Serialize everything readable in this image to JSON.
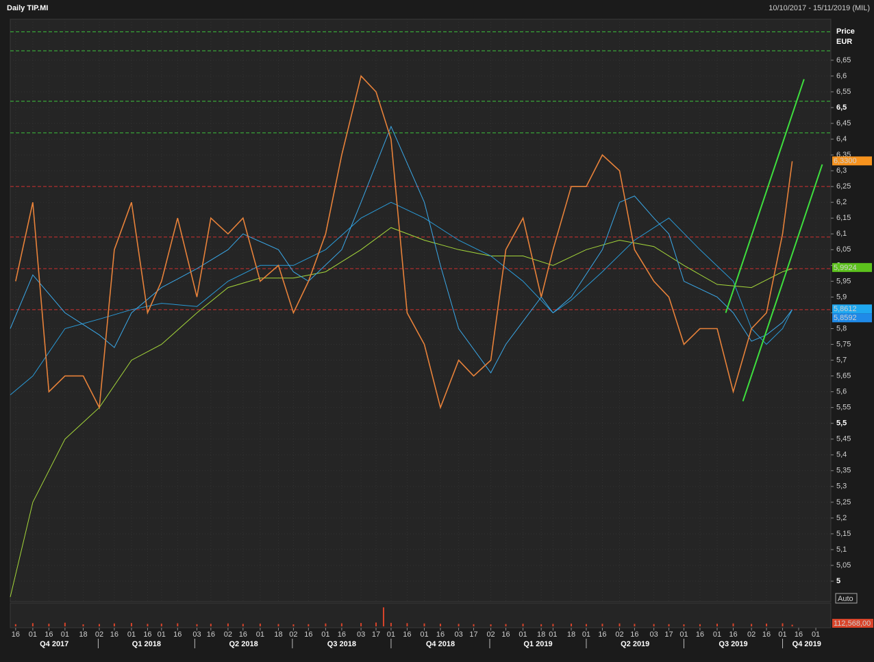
{
  "chart_data": {
    "type": "line",
    "title": "Daily TIP.MI",
    "subtitle": "10/10/2017 - 15/11/2019 (MIL)",
    "y_axis_label": "Price",
    "y_axis_unit": "EUR",
    "scale_button": "Auto",
    "grid": true,
    "xlim": [
      "2017-10-11",
      "2019-11-15"
    ],
    "ylim": [
      4.935,
      6.78
    ],
    "yticks": [
      5,
      {
        "value": 5.05,
        "label": "5,05"
      },
      {
        "value": 5.1,
        "label": "5,1"
      },
      {
        "value": 5.15,
        "label": "5,15"
      },
      {
        "value": 5.2,
        "label": "5,2"
      },
      {
        "value": 5.25,
        "label": "5,25"
      },
      {
        "value": 5.3,
        "label": "5,3"
      },
      {
        "value": 5.35,
        "label": "5,35"
      },
      {
        "value": 5.4,
        "label": "5,4"
      },
      {
        "value": 5.45,
        "label": "5,45"
      },
      {
        "value": 5.5,
        "label": "5,5"
      },
      {
        "value": 5.55,
        "label": "5,55"
      },
      {
        "value": 5.6,
        "label": "5,6"
      },
      {
        "value": 5.65,
        "label": "5,65"
      },
      {
        "value": 5.7,
        "label": "5,7"
      },
      {
        "value": 5.75,
        "label": "5,75"
      },
      {
        "value": 5.8,
        "label": "5,8"
      },
      {
        "value": 5.85,
        "label": "5,85"
      },
      {
        "value": 5.9,
        "label": "5,9"
      },
      {
        "value": 5.95,
        "label": "5,95"
      },
      6,
      {
        "value": 6.05,
        "label": "6,05"
      },
      {
        "value": 6.1,
        "label": "6,1"
      },
      {
        "value": 6.15,
        "label": "6,15"
      },
      {
        "value": 6.2,
        "label": "6,2"
      },
      {
        "value": 6.25,
        "label": "6,25"
      },
      {
        "value": 6.3,
        "label": "6,3"
      },
      {
        "value": 6.35,
        "label": "6,35"
      },
      {
        "value": 6.4,
        "label": "6,4"
      },
      {
        "value": 6.45,
        "label": "6,45"
      },
      {
        "value": 6.5,
        "label": "6,5"
      },
      {
        "value": 6.55,
        "label": "6,55"
      },
      {
        "value": 6.6,
        "label": "6,6"
      },
      {
        "value": 6.65,
        "label": "6,65"
      }
    ],
    "xticks": [
      {
        "value": "2017-10-16",
        "label": "16"
      },
      {
        "value": "2017-11-01",
        "label": "01"
      },
      {
        "value": "2017-11-16",
        "label": "16"
      },
      {
        "value": "2017-12-01",
        "label": "01"
      },
      {
        "value": "2017-12-18",
        "label": "18"
      },
      {
        "value": "2018-01-02",
        "label": "02"
      },
      {
        "value": "2018-01-16",
        "label": "16"
      },
      {
        "value": "2018-02-01",
        "label": "01"
      },
      {
        "value": "2018-02-16",
        "label": "16"
      },
      {
        "value": "2018-03-01",
        "label": "01"
      },
      {
        "value": "2018-03-16",
        "label": "16"
      },
      {
        "value": "2018-04-03",
        "label": "03"
      },
      {
        "value": "2018-04-16",
        "label": "16"
      },
      {
        "value": "2018-05-02",
        "label": "02"
      },
      {
        "value": "2018-05-16",
        "label": "16"
      },
      {
        "value": "2018-06-01",
        "label": "01"
      },
      {
        "value": "2018-06-18",
        "label": "18"
      },
      {
        "value": "2018-07-02",
        "label": "02"
      },
      {
        "value": "2018-07-16",
        "label": "16"
      },
      {
        "value": "2018-08-01",
        "label": "01"
      },
      {
        "value": "2018-08-16",
        "label": "16"
      },
      {
        "value": "2018-09-03",
        "label": "03"
      },
      {
        "value": "2018-09-17",
        "label": "17"
      },
      {
        "value": "2018-10-01",
        "label": "01"
      },
      {
        "value": "2018-10-16",
        "label": "16"
      },
      {
        "value": "2018-11-01",
        "label": "01"
      },
      {
        "value": "2018-11-16",
        "label": "16"
      },
      {
        "value": "2018-12-03",
        "label": "03"
      },
      {
        "value": "2018-12-17",
        "label": "17"
      },
      {
        "value": "2019-01-02",
        "label": "02"
      },
      {
        "value": "2019-01-16",
        "label": "16"
      },
      {
        "value": "2019-02-01",
        "label": "01"
      },
      {
        "value": "2019-02-18",
        "label": "18"
      },
      {
        "value": "2019-03-01",
        "label": "01"
      },
      {
        "value": "2019-03-18",
        "label": "18"
      },
      {
        "value": "2019-04-01",
        "label": "01"
      },
      {
        "value": "2019-04-16",
        "label": "16"
      },
      {
        "value": "2019-05-02",
        "label": "02"
      },
      {
        "value": "2019-05-16",
        "label": "16"
      },
      {
        "value": "2019-06-03",
        "label": "03"
      },
      {
        "value": "2019-06-17",
        "label": "17"
      },
      {
        "value": "2019-07-01",
        "label": "01"
      },
      {
        "value": "2019-07-16",
        "label": "16"
      },
      {
        "value": "2019-08-01",
        "label": "01"
      },
      {
        "value": "2019-08-16",
        "label": "16"
      },
      {
        "value": "2019-09-02",
        "label": "02"
      },
      {
        "value": "2019-09-16",
        "label": "16"
      },
      {
        "value": "2019-10-01",
        "label": "01"
      },
      {
        "value": "2019-10-16",
        "label": "16"
      },
      {
        "value": "2019-11-01",
        "label": "01"
      }
    ],
    "quarters": [
      {
        "value": "2017-10-01",
        "label": "Q4 2017"
      },
      {
        "value": "2018-01-01",
        "label": "Q1 2018"
      },
      {
        "value": "2018-04-01",
        "label": "Q2 2018"
      },
      {
        "value": "2018-07-01",
        "label": "Q3 2018"
      },
      {
        "value": "2018-10-01",
        "label": "Q4 2018"
      },
      {
        "value": "2019-01-01",
        "label": "Q1 2019"
      },
      {
        "value": "2019-04-01",
        "label": "Q2 2019"
      },
      {
        "value": "2019-07-01",
        "label": "Q3 2019"
      },
      {
        "value": "2019-10-01",
        "label": "Q4 2019"
      }
    ],
    "series": [
      {
        "color": "#e8823a",
        "x": [
          "2017-10-16",
          "2017-11-01",
          "2017-11-16",
          "2017-12-01",
          "2017-12-18",
          "2018-01-02",
          "2018-01-16",
          "2018-02-01",
          "2018-02-16",
          "2018-03-01",
          "2018-03-16",
          "2018-04-03",
          "2018-04-16",
          "2018-05-02",
          "2018-05-16",
          "2018-06-01",
          "2018-06-18",
          "2018-07-02",
          "2018-07-16",
          "2018-08-01",
          "2018-08-16",
          "2018-09-03",
          "2018-09-17",
          "2018-10-01",
          "2018-10-16",
          "2018-11-01",
          "2018-11-16",
          "2018-12-03",
          "2018-12-17",
          "2019-01-02",
          "2019-01-16",
          "2019-02-01",
          "2019-02-18",
          "2019-03-01",
          "2019-03-18",
          "2019-04-01",
          "2019-04-16",
          "2019-05-02",
          "2019-05-16",
          "2019-06-03",
          "2019-06-17",
          "2019-07-01",
          "2019-07-16",
          "2019-08-01",
          "2019-08-16",
          "2019-09-02",
          "2019-09-16",
          "2019-10-01",
          "2019-10-10"
        ],
        "values": [
          5.95,
          6.2,
          5.6,
          5.65,
          5.65,
          5.55,
          6.05,
          6.2,
          5.85,
          5.95,
          6.15,
          5.9,
          6.15,
          6.1,
          6.15,
          5.95,
          6.0,
          5.85,
          5.95,
          6.1,
          6.35,
          6.6,
          6.55,
          6.4,
          5.85,
          5.75,
          5.55,
          5.7,
          5.65,
          5.7,
          6.05,
          6.15,
          5.9,
          6.05,
          6.25,
          6.25,
          6.35,
          6.3,
          6.05,
          5.95,
          5.9,
          5.75,
          5.8,
          5.8,
          5.6,
          5.8,
          5.85,
          6.1,
          6.33
        ]
      },
      {
        "color": "#3aa8e8",
        "x": [
          "2017-10-11",
          "2017-11-01",
          "2017-12-01",
          "2018-01-02",
          "2018-01-16",
          "2018-02-01",
          "2018-03-01",
          "2018-04-03",
          "2018-05-02",
          "2018-05-16",
          "2018-06-18",
          "2018-07-02",
          "2018-07-16",
          "2018-08-16",
          "2018-09-03",
          "2018-10-01",
          "2018-11-01",
          "2018-11-16",
          "2018-12-03",
          "2019-01-02",
          "2019-01-16",
          "2019-02-18",
          "2019-03-01",
          "2019-03-18",
          "2019-04-16",
          "2019-05-02",
          "2019-05-16",
          "2019-06-03",
          "2019-06-17",
          "2019-07-01",
          "2019-08-01",
          "2019-08-16",
          "2019-09-02",
          "2019-09-16",
          "2019-10-01",
          "2019-10-10"
        ],
        "values": [
          5.8,
          5.97,
          5.85,
          5.78,
          5.74,
          5.85,
          5.93,
          5.99,
          6.05,
          6.1,
          6.05,
          5.98,
          5.95,
          6.05,
          6.2,
          6.44,
          6.2,
          6.0,
          5.8,
          5.66,
          5.75,
          5.9,
          5.85,
          5.9,
          6.05,
          6.2,
          6.22,
          6.15,
          6.1,
          5.95,
          5.9,
          5.85,
          5.76,
          5.78,
          5.82,
          5.86
        ]
      },
      {
        "color": "#2a9bd8",
        "x": [
          "2017-10-11",
          "2017-11-01",
          "2017-12-01",
          "2018-01-02",
          "2018-02-01",
          "2018-03-01",
          "2018-04-03",
          "2018-05-02",
          "2018-06-01",
          "2018-07-02",
          "2018-08-01",
          "2018-09-03",
          "2018-10-01",
          "2018-11-01",
          "2018-12-03",
          "2019-01-02",
          "2019-02-01",
          "2019-03-01",
          "2019-03-18",
          "2019-04-16",
          "2019-05-16",
          "2019-06-17",
          "2019-07-16",
          "2019-08-16",
          "2019-09-02",
          "2019-09-16",
          "2019-10-01",
          "2019-10-10"
        ],
        "values": [
          5.59,
          5.65,
          5.8,
          5.83,
          5.86,
          5.88,
          5.87,
          5.95,
          6.0,
          6.0,
          6.05,
          6.15,
          6.2,
          6.15,
          6.08,
          6.03,
          5.95,
          5.85,
          5.89,
          5.98,
          6.08,
          6.15,
          6.05,
          5.95,
          5.8,
          5.75,
          5.8,
          5.86
        ]
      },
      {
        "color": "#a6d83a",
        "x": [
          "2017-10-11",
          "2017-11-01",
          "2017-12-01",
          "2018-01-02",
          "2018-02-01",
          "2018-03-01",
          "2018-04-03",
          "2018-05-02",
          "2018-06-01",
          "2018-07-02",
          "2018-08-01",
          "2018-09-03",
          "2018-10-01",
          "2018-11-01",
          "2018-12-03",
          "2019-01-02",
          "2019-02-01",
          "2019-03-01",
          "2019-04-01",
          "2019-05-02",
          "2019-06-03",
          "2019-07-01",
          "2019-08-01",
          "2019-09-02",
          "2019-10-01",
          "2019-10-10"
        ],
        "values": [
          4.95,
          5.25,
          5.45,
          5.55,
          5.7,
          5.75,
          5.85,
          5.93,
          5.96,
          5.96,
          5.98,
          6.05,
          6.12,
          6.08,
          6.05,
          6.03,
          6.03,
          6.0,
          6.05,
          6.08,
          6.06,
          6.0,
          5.94,
          5.93,
          5.98,
          5.99
        ]
      }
    ],
    "levels": [
      {
        "value": 6.74,
        "color": "#3ec43e"
      },
      {
        "value": 6.68,
        "color": "#3ec43e"
      },
      {
        "value": 6.52,
        "color": "#3ec43e"
      },
      {
        "value": 6.42,
        "color": "#3ec43e"
      },
      {
        "value": 6.25,
        "color": "#d03030"
      },
      {
        "value": 6.09,
        "color": "#d03030"
      },
      {
        "value": 5.99,
        "color": "#d03030"
      },
      {
        "value": 5.86,
        "color": "#d03030"
      }
    ],
    "trend_lines": [
      {
        "x": [
          "2019-08-09",
          "2019-10-21"
        ],
        "values": [
          5.85,
          6.59
        ],
        "color": "#3ee03e"
      },
      {
        "x": [
          "2019-08-25",
          "2019-11-07"
        ],
        "values": [
          5.57,
          6.32
        ],
        "color": "#3ee03e"
      }
    ],
    "price_tags": [
      {
        "value": 6.33,
        "label": "6,3300",
        "color": "#f7931e"
      },
      {
        "value": 5.9924,
        "label": "5,9924",
        "color": "#5cc21c"
      },
      {
        "value": 5.8612,
        "label": "5,8612",
        "color": "#1fa8f0"
      },
      {
        "value": 5.8592,
        "label": "5,8592",
        "color": "#1f8ae8"
      }
    ],
    "volume": {
      "color": "#d9442a",
      "ylim": [
        0,
        1500000
      ],
      "label": "112,568,00",
      "x": [
        "2017-10-16",
        "2017-11-01",
        "2017-11-16",
        "2017-12-01",
        "2017-12-18",
        "2018-01-02",
        "2018-01-16",
        "2018-02-01",
        "2018-02-16",
        "2018-03-01",
        "2018-03-16",
        "2018-04-03",
        "2018-04-16",
        "2018-05-02",
        "2018-05-16",
        "2018-06-01",
        "2018-06-18",
        "2018-07-02",
        "2018-07-16",
        "2018-08-01",
        "2018-08-16",
        "2018-09-03",
        "2018-09-17",
        "2018-09-24",
        "2018-10-01",
        "2018-10-16",
        "2018-11-01",
        "2018-11-16",
        "2018-12-03",
        "2018-12-17",
        "2019-01-02",
        "2019-01-16",
        "2019-02-01",
        "2019-02-18",
        "2019-03-01",
        "2019-03-18",
        "2019-04-01",
        "2019-04-16",
        "2019-05-02",
        "2019-05-16",
        "2019-06-03",
        "2019-06-17",
        "2019-07-01",
        "2019-07-16",
        "2019-08-01",
        "2019-08-16",
        "2019-09-02",
        "2019-09-16",
        "2019-10-01",
        "2019-10-10"
      ],
      "values": [
        150000,
        220000,
        180000,
        250000,
        140000,
        160000,
        200000,
        230000,
        170000,
        190000,
        210000,
        150000,
        180000,
        200000,
        170000,
        190000,
        160000,
        140000,
        150000,
        200000,
        210000,
        230000,
        260000,
        1300000,
        240000,
        220000,
        200000,
        180000,
        170000,
        150000,
        140000,
        160000,
        180000,
        150000,
        170000,
        190000,
        160000,
        180000,
        200000,
        170000,
        160000,
        150000,
        140000,
        150000,
        180000,
        200000,
        170000,
        190000,
        210000,
        112568
      ]
    }
  }
}
